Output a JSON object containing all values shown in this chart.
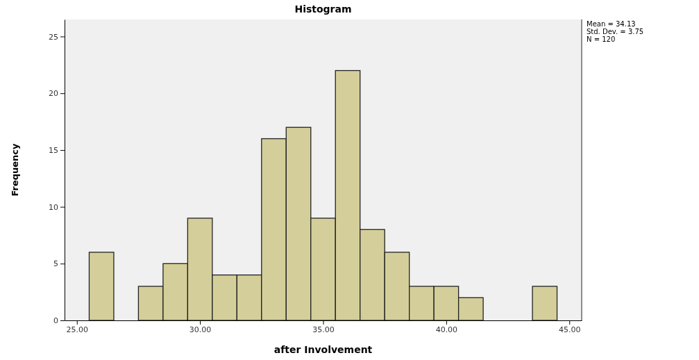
{
  "chart_data": {
    "type": "histogram",
    "title": "Histogram",
    "xlabel": "after Involvement",
    "ylabel": "Frequency",
    "bins": [
      25.5,
      26.5,
      27.5,
      28.5,
      29.5,
      30.5,
      31.5,
      32.5,
      33.5,
      34.5,
      35.5,
      36.5,
      37.5,
      38.5,
      39.5,
      40.5,
      41.5,
      42.5,
      43.5,
      44.5
    ],
    "values": [
      6,
      0,
      3,
      5,
      9,
      4,
      4,
      16,
      17,
      9,
      22,
      8,
      6,
      3,
      3,
      2,
      0,
      0,
      3
    ],
    "color": "#d4cf9a",
    "xlim": [
      24.5,
      45.5
    ],
    "ylim": [
      0,
      26.5
    ],
    "xticks": [
      {
        "value": 25,
        "label": "25.00"
      },
      {
        "value": 30,
        "label": "30.00"
      },
      {
        "value": 35,
        "label": "35.00"
      },
      {
        "value": 40,
        "label": "40.00"
      },
      {
        "value": 45,
        "label": "45.00"
      }
    ],
    "yticks": [
      0,
      5,
      10,
      15,
      20,
      25
    ],
    "annotations": [
      "Mean = 34.13",
      "Std. Dev. = 3.75",
      "N = 120"
    ]
  }
}
